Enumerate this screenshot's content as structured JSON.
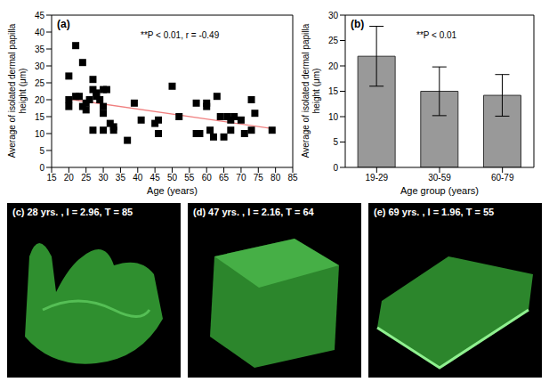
{
  "chart_data": [
    {
      "type": "scatter",
      "panel": "(a)",
      "annotation": "**P < 0.01, r = -0.49",
      "xlabel": "Age (years)",
      "ylabel": "Average of isolated dermal papilla height (μm)",
      "x": [
        20,
        20,
        20,
        22,
        22,
        23,
        24,
        24,
        25,
        25,
        26,
        27,
        27,
        27,
        28,
        28,
        29,
        30,
        30,
        30,
        30,
        31,
        32,
        33,
        33,
        37,
        39,
        41,
        45,
        46,
        46,
        50,
        52,
        57,
        57,
        58,
        60,
        60,
        61,
        62,
        63,
        64,
        65,
        66,
        67,
        67,
        68,
        70,
        71,
        73,
        73,
        74,
        79
      ],
      "values": [
        27,
        20,
        18,
        21,
        36,
        21,
        31,
        18,
        19,
        17,
        20,
        26,
        23,
        11,
        22,
        21,
        20,
        23,
        18,
        16,
        11,
        23,
        13,
        12,
        11,
        8,
        19,
        14,
        13,
        10,
        14,
        24,
        15,
        19,
        10,
        10,
        19,
        18,
        11,
        9,
        21,
        15,
        9,
        15,
        14,
        11,
        15,
        14,
        10,
        20,
        11,
        16,
        11
      ],
      "color": "#000000",
      "marker": "square",
      "trend": {
        "x": [
          20,
          79
        ],
        "values": [
          20.2,
          11.5
        ],
        "color": "#f08080"
      },
      "xlim": [
        15,
        85
      ],
      "xticks": [
        15,
        20,
        25,
        30,
        35,
        40,
        45,
        50,
        55,
        60,
        65,
        70,
        75,
        80,
        85
      ],
      "ylim": [
        0,
        45
      ],
      "yticks": [
        0,
        5,
        10,
        15,
        20,
        25,
        30,
        35,
        40,
        45
      ]
    },
    {
      "type": "bar",
      "panel": "(b)",
      "annotation": "**P < 0.01",
      "xlabel": "Age group (years)",
      "ylabel": "Average of isolated dermal papilla height (μm)",
      "categories": [
        "19-29",
        "30-59",
        "60-79"
      ],
      "values": [
        21.9,
        15.0,
        14.2
      ],
      "errors": [
        5.9,
        4.8,
        4.1
      ],
      "color": "#999999",
      "ylim": [
        0,
        30
      ],
      "yticks": [
        0,
        5,
        10,
        15,
        20,
        25,
        30
      ]
    }
  ],
  "images": [
    {
      "label": "(c) 28 yrs. , I = 2.96, T = 85"
    },
    {
      "label": "(d) 47 yrs. , I = 2.16, T = 64"
    },
    {
      "label": "(e) 69 yrs. , I = 1.96, T = 55"
    }
  ]
}
